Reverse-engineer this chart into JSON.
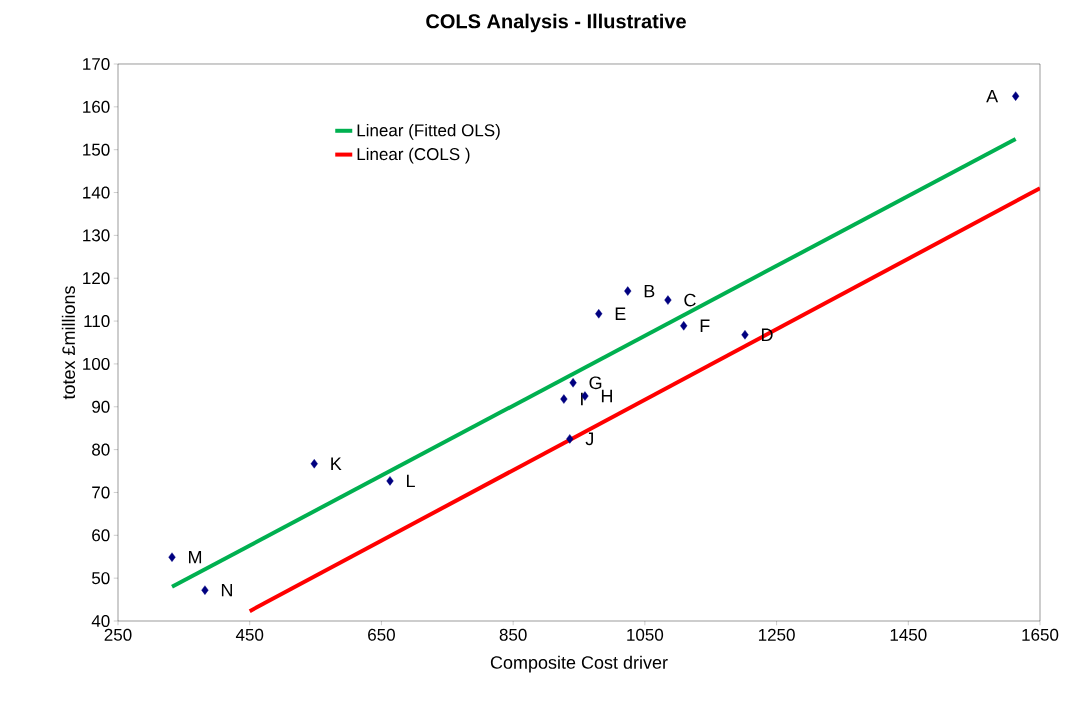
{
  "chart_data": {
    "type": "scatter",
    "title": "COLS Analysis - Illustrative",
    "xlabel": "Composite Cost driver",
    "ylabel": "totex £millions",
    "xlim": [
      250,
      1650
    ],
    "ylim": [
      40,
      170
    ],
    "xticks": [
      250,
      450,
      650,
      850,
      1050,
      1250,
      1450,
      1650
    ],
    "yticks": [
      40,
      50,
      60,
      70,
      80,
      90,
      100,
      110,
      120,
      130,
      140,
      150,
      160,
      170
    ],
    "grid": false,
    "legend": "top left",
    "marker": "diamond",
    "series": [
      {
        "color": "#000080",
        "x": [
          1613,
          1024,
          1085,
          1202,
          980,
          1109,
          941,
          959,
          927,
          936,
          548,
          663,
          332,
          382
        ],
        "values": [
          162.5,
          117,
          114.9,
          106.8,
          111.7,
          108.9,
          95.6,
          92.5,
          91.8,
          82.5,
          76.7,
          72.7,
          54.9,
          47.2
        ]
      },
      {
        "name": "Linear (Fitted OLS)",
        "type": "line",
        "color": "#00b050",
        "marker": "none",
        "x": [
          332,
          1613
        ],
        "values": [
          48,
          152.5
        ]
      },
      {
        "name": "Linear (COLS )",
        "type": "line",
        "color": "#ff0000",
        "marker": "none",
        "x": [
          450,
          1650
        ],
        "values": [
          42.3,
          141
        ]
      }
    ],
    "annotations": [
      {
        "text": "A",
        "x": 1613,
        "y": 162.5
      },
      {
        "text": "B",
        "x": 1024,
        "y": 117
      },
      {
        "text": "C",
        "x": 1085,
        "y": 114.9
      },
      {
        "text": "D",
        "x": 1202,
        "y": 106.8
      },
      {
        "text": "E",
        "x": 980,
        "y": 111.7
      },
      {
        "text": "F",
        "x": 1109,
        "y": 108.9
      },
      {
        "text": "G",
        "x": 941,
        "y": 95.6
      },
      {
        "text": "H",
        "x": 959,
        "y": 92.5
      },
      {
        "text": "I",
        "x": 927,
        "y": 91.8
      },
      {
        "text": "J",
        "x": 936,
        "y": 82.5
      },
      {
        "text": "K",
        "x": 548,
        "y": 76.7
      },
      {
        "text": "L",
        "x": 663,
        "y": 72.7
      },
      {
        "text": "M",
        "x": 332,
        "y": 54.9
      },
      {
        "text": "N",
        "x": 382,
        "y": 47.2
      }
    ]
  }
}
